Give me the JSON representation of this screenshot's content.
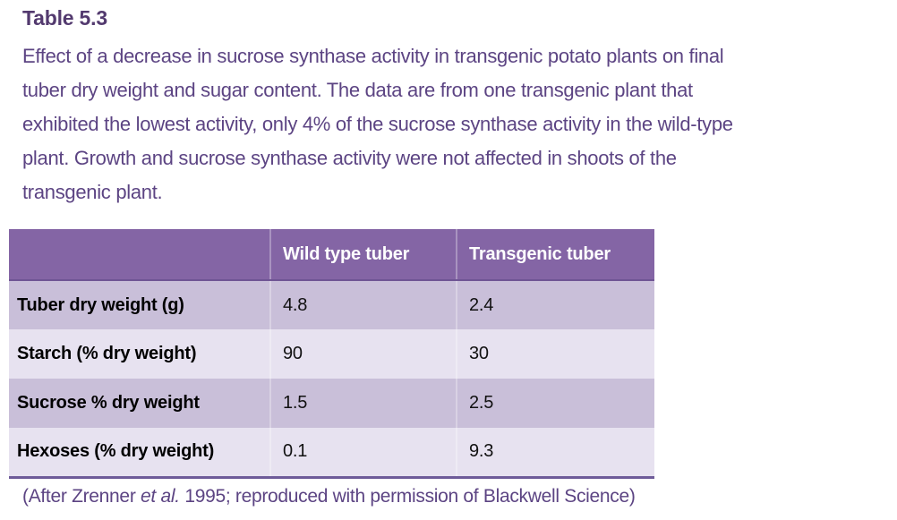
{
  "page": {
    "title": "Table 5.3",
    "caption_lines": [
      "Effect of a decrease in sucrose synthase activity in transgenic potato plants on final",
      "tuber dry weight and sugar content. The data are from one transgenic plant that",
      "exhibited the lowest activity, only 4% of the sucrose synthase activity in the wild-type",
      "plant. Growth and sucrose synthase activity were not affected in shoots of the",
      "transgenic plant."
    ],
    "footer": {
      "pre": "(After Zrenner ",
      "italic": "et al.",
      "post": " 1995; reproduced with permission of Blackwell Science)"
    }
  },
  "table": {
    "header": {
      "col1": "",
      "col2": "Wild type tuber",
      "col3": "Transgenic tuber"
    },
    "rows": [
      {
        "label": "Tuber dry weight (g)",
        "wild": "4.8",
        "transgenic": "2.4"
      },
      {
        "label": "Starch (% dry weight)",
        "wild": "90",
        "transgenic": "30"
      },
      {
        "label": "Sucrose % dry weight",
        "wild": "1.5",
        "transgenic": "2.5"
      },
      {
        "label": "Hexoses (% dry weight)",
        "wild": "0.1",
        "transgenic": "9.3"
      }
    ]
  },
  "colors": {
    "title_purple": "#533A6F",
    "text_purple": "#5C4483",
    "header_bg": "#8465A5",
    "header_border": "#6F5494",
    "band_dark": "#C9BFD9",
    "band_light": "#E7E2F0",
    "border_purple": "#6E5B99",
    "cell_text": "#111111"
  }
}
